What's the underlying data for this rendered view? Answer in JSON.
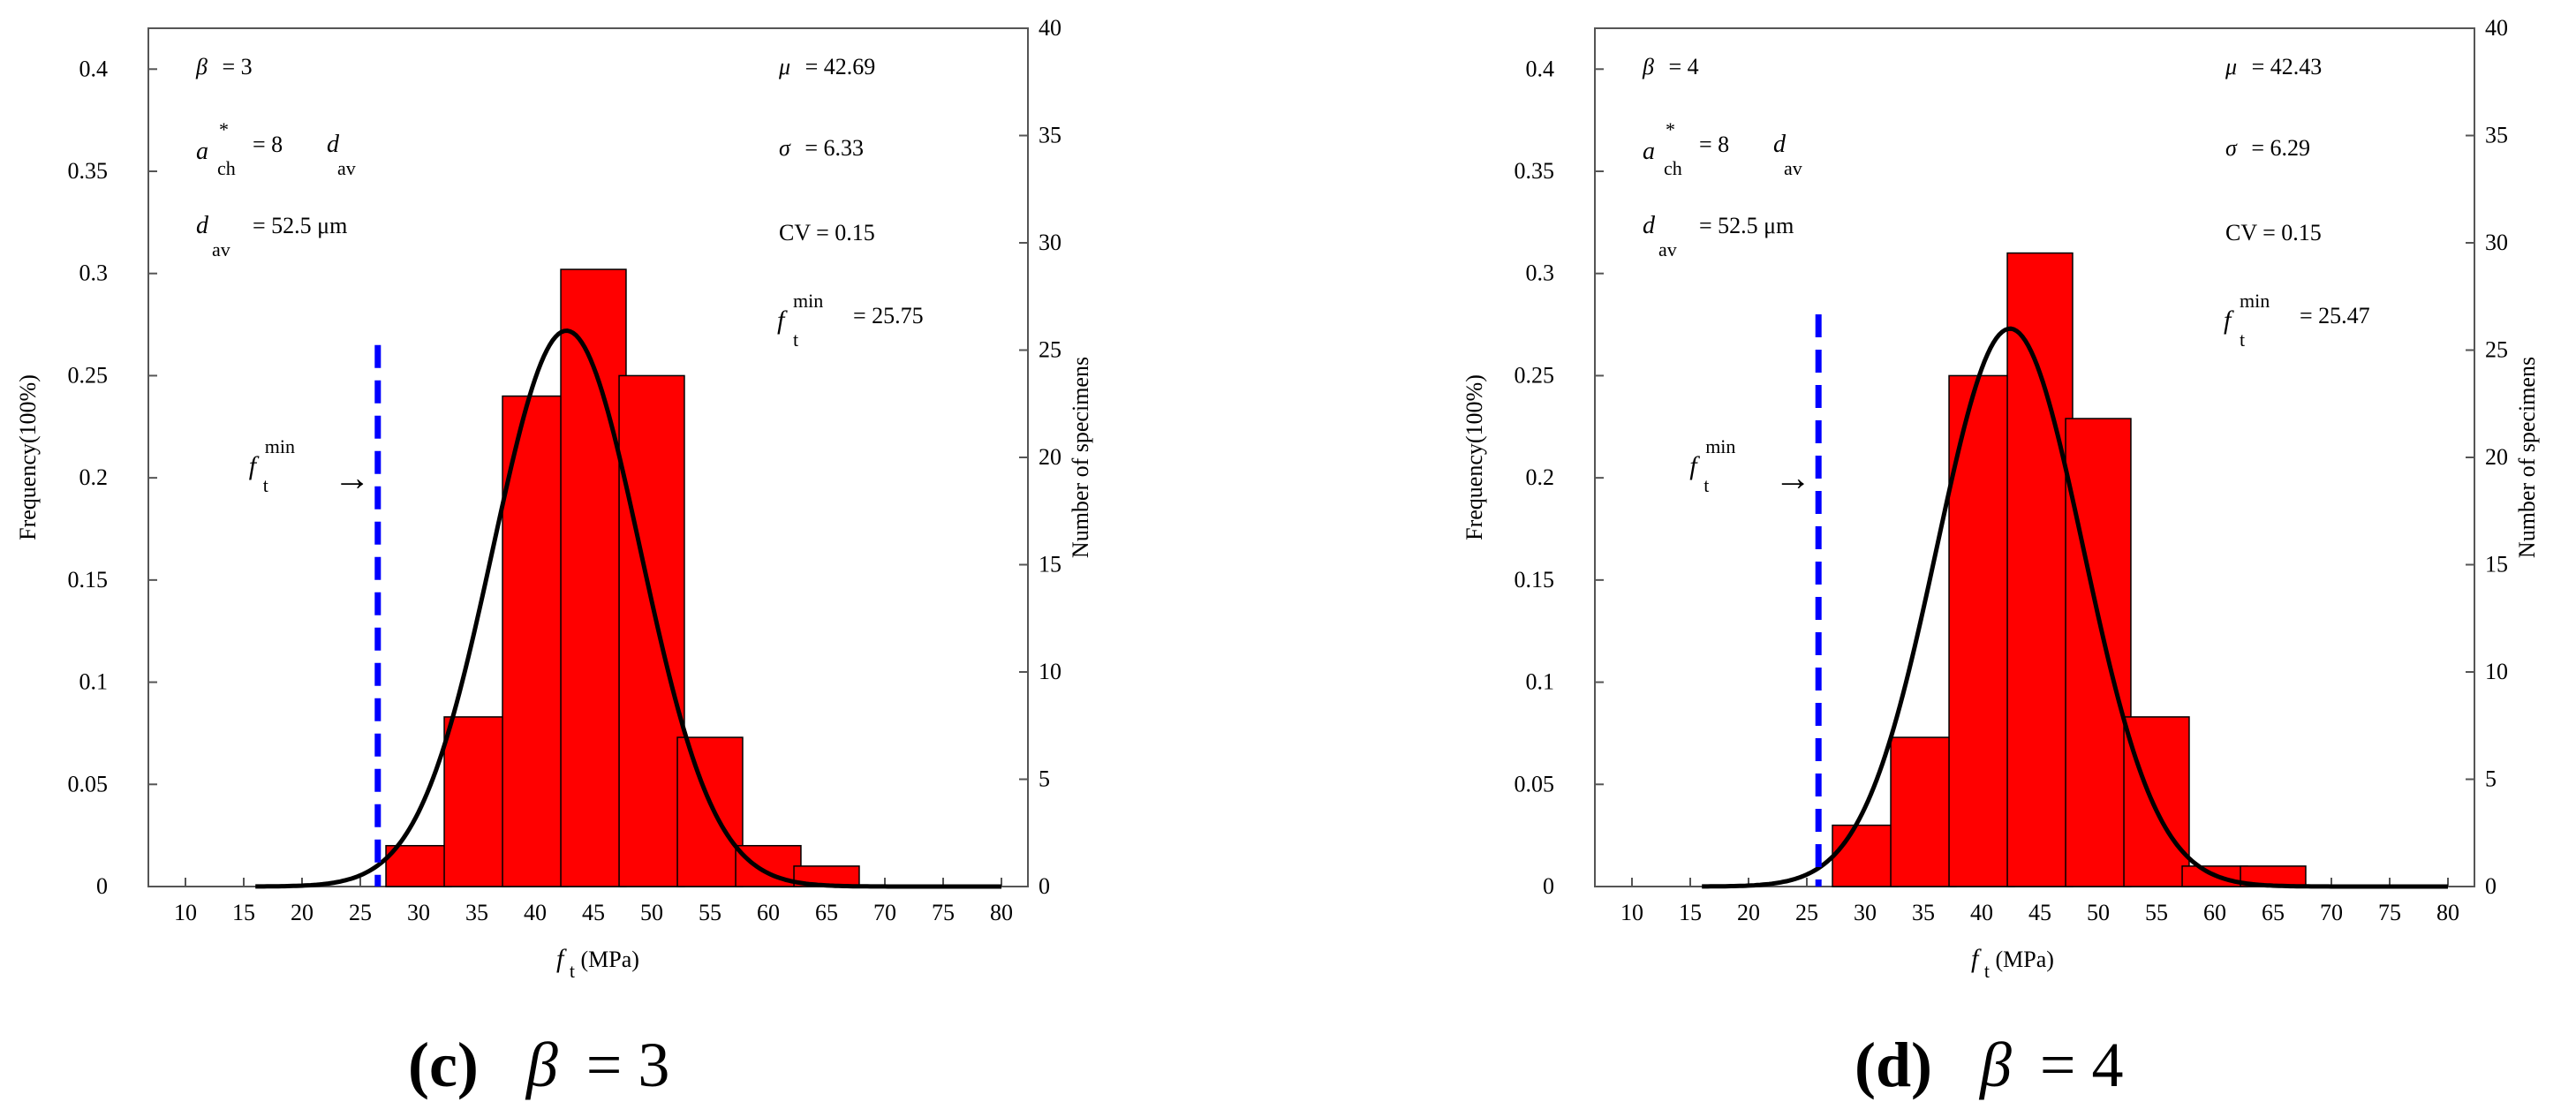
{
  "chart_data": [
    {
      "type": "bar",
      "panel_label": "(c)",
      "beta_symbol": "β",
      "caption_value": "= 3",
      "bins": [
        30,
        35,
        40,
        45,
        50,
        55,
        60,
        65
      ],
      "frequency": [
        0.02,
        0.083,
        0.24,
        0.302,
        0.25,
        0.073,
        0.02,
        0.01
      ],
      "fit": {
        "type": "normal",
        "mu": 42.69,
        "sigma": 6.33,
        "peak": 0.272
      },
      "min_line_x": 26.5,
      "min_line_top": 0.265,
      "arrow_y": 0.2,
      "xlim": [
        10,
        80
      ],
      "ylim": [
        0,
        0.42
      ],
      "y2lim": [
        0,
        40
      ],
      "xticks": [
        "10",
        "15",
        "20",
        "25",
        "30",
        "35",
        "40",
        "45",
        "50",
        "55",
        "60",
        "65",
        "70",
        "75",
        "80"
      ],
      "yticks": [
        "0",
        "0.05",
        "0.1",
        "0.15",
        "0.2",
        "0.25",
        "0.3",
        "0.35",
        "0.4"
      ],
      "y2ticks": [
        "0",
        "5",
        "10",
        "15",
        "20",
        "25",
        "30",
        "35",
        "40"
      ],
      "ylabel": "Frequency(100%)",
      "y2label": "Number of specimens",
      "xlabel_main": "f",
      "xlabel_sub": "t",
      "xlabel_unit": "(MPa)",
      "ann": {
        "beta_sym": "β",
        "beta_val": "= 3",
        "ach_main": "a",
        "ach_sup": "*",
        "ach_sub": "ch",
        "ach_val": "= 8",
        "ach_d": "d",
        "ach_dsub": "av",
        "dav_main": "d",
        "dav_sub": "av",
        "dav_val": "= 52.5 μm",
        "mu_sym": "μ",
        "mu_val": "= 42.69",
        "sigma_sym": "σ",
        "sigma_val": "= 6.33",
        "cv": "CV = 0.15",
        "fmin_main": "f",
        "fmin_sup": "min",
        "fmin_sub": "t",
        "fmin_val": "= 25.75",
        "ptr_main": "f",
        "ptr_sup": "min",
        "ptr_sub": "t",
        "ptr_arrow": "→"
      },
      "colors": {
        "bar": "#ff0000",
        "curve": "#000000",
        "line": "#0000ff"
      }
    },
    {
      "type": "bar",
      "panel_label": "(d)",
      "beta_symbol": "β",
      "caption_value": "= 4",
      "bins": [
        30,
        35,
        40,
        45,
        50,
        55,
        60,
        65
      ],
      "frequency": [
        0.03,
        0.073,
        0.25,
        0.31,
        0.229,
        0.083,
        0.01,
        0.01
      ],
      "fit": {
        "type": "normal",
        "mu": 42.43,
        "sigma": 6.29,
        "peak": 0.273
      },
      "min_line_x": 26,
      "min_line_top": 0.28,
      "arrow_y": 0.2,
      "xlim": [
        10,
        80
      ],
      "ylim": [
        0,
        0.42
      ],
      "y2lim": [
        0,
        40
      ],
      "xticks": [
        "10",
        "15",
        "20",
        "25",
        "30",
        "35",
        "40",
        "45",
        "50",
        "55",
        "60",
        "65",
        "70",
        "75",
        "80"
      ],
      "yticks": [
        "0",
        "0.05",
        "0.1",
        "0.15",
        "0.2",
        "0.25",
        "0.3",
        "0.35",
        "0.4"
      ],
      "y2ticks": [
        "0",
        "5",
        "10",
        "15",
        "20",
        "25",
        "30",
        "35",
        "40"
      ],
      "ylabel": "Frequency(100%)",
      "y2label": "Number of specimens",
      "xlabel_main": "f",
      "xlabel_sub": "t",
      "xlabel_unit": "(MPa)",
      "ann": {
        "beta_sym": "β",
        "beta_val": "= 4",
        "ach_main": "a",
        "ach_sup": "*",
        "ach_sub": "ch",
        "ach_val": "= 8",
        "ach_d": "d",
        "ach_dsub": "av",
        "dav_main": "d",
        "dav_sub": "av",
        "dav_val": "= 52.5 μm",
        "mu_sym": "μ",
        "mu_val": "= 42.43",
        "sigma_sym": "σ",
        "sigma_val": "= 6.29",
        "cv": "CV = 0.15",
        "fmin_main": "f",
        "fmin_sup": "min",
        "fmin_sub": "t",
        "fmin_val": "= 25.47",
        "ptr_main": "f",
        "ptr_sup": "min",
        "ptr_sub": "t",
        "ptr_arrow": "→"
      },
      "colors": {
        "bar": "#ff0000",
        "curve": "#000000",
        "line": "#0000ff"
      }
    }
  ]
}
